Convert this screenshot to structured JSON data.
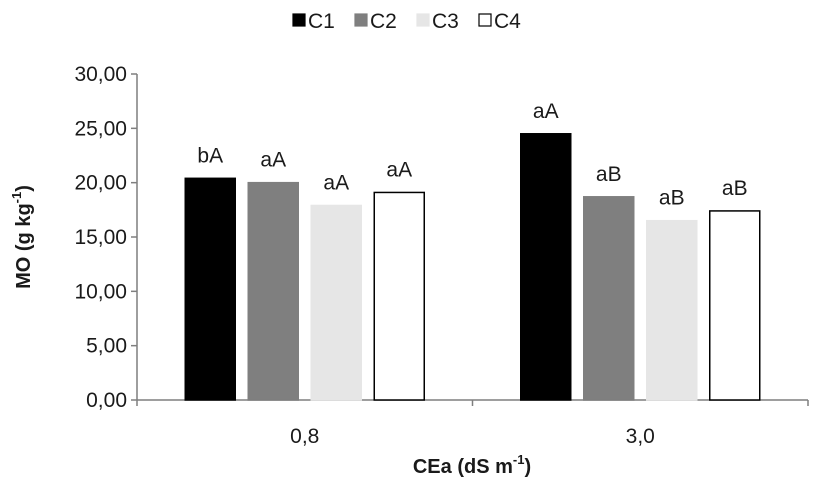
{
  "chart_data": {
    "type": "bar",
    "categories": [
      "0,8",
      "3,0"
    ],
    "series": [
      {
        "name": "C1",
        "values": [
          20.4,
          24.5
        ],
        "labels": [
          "bA",
          "aA"
        ],
        "fill": "#000000",
        "stroke": "#000000"
      },
      {
        "name": "C2",
        "values": [
          20.0,
          18.7
        ],
        "labels": [
          "aA",
          "aB"
        ],
        "fill": "#7f7f7f",
        "stroke": "#7f7f7f"
      },
      {
        "name": "C3",
        "values": [
          17.9,
          16.5
        ],
        "labels": [
          "aA",
          "aB"
        ],
        "fill": "#e6e6e6",
        "stroke": "#e6e6e6"
      },
      {
        "name": "C4",
        "values": [
          19.1,
          17.4
        ],
        "labels": [
          "aA",
          "aB"
        ],
        "fill": "#ffffff",
        "stroke": "#000000"
      }
    ],
    "ylim": [
      0,
      30
    ],
    "yticks": [
      "0,00",
      "5,00",
      "10,00",
      "15,00",
      "20,00",
      "25,00",
      "30,00"
    ],
    "ytick_step": 5,
    "xlabel": "CEa (dS m",
    "xlabel_sup": "-1",
    "xlabel_end": ")",
    "ylabel": "MO (g kg",
    "ylabel_sup": "-1",
    "ylabel_end": ")",
    "legend_position": "top-center",
    "grid": false
  }
}
